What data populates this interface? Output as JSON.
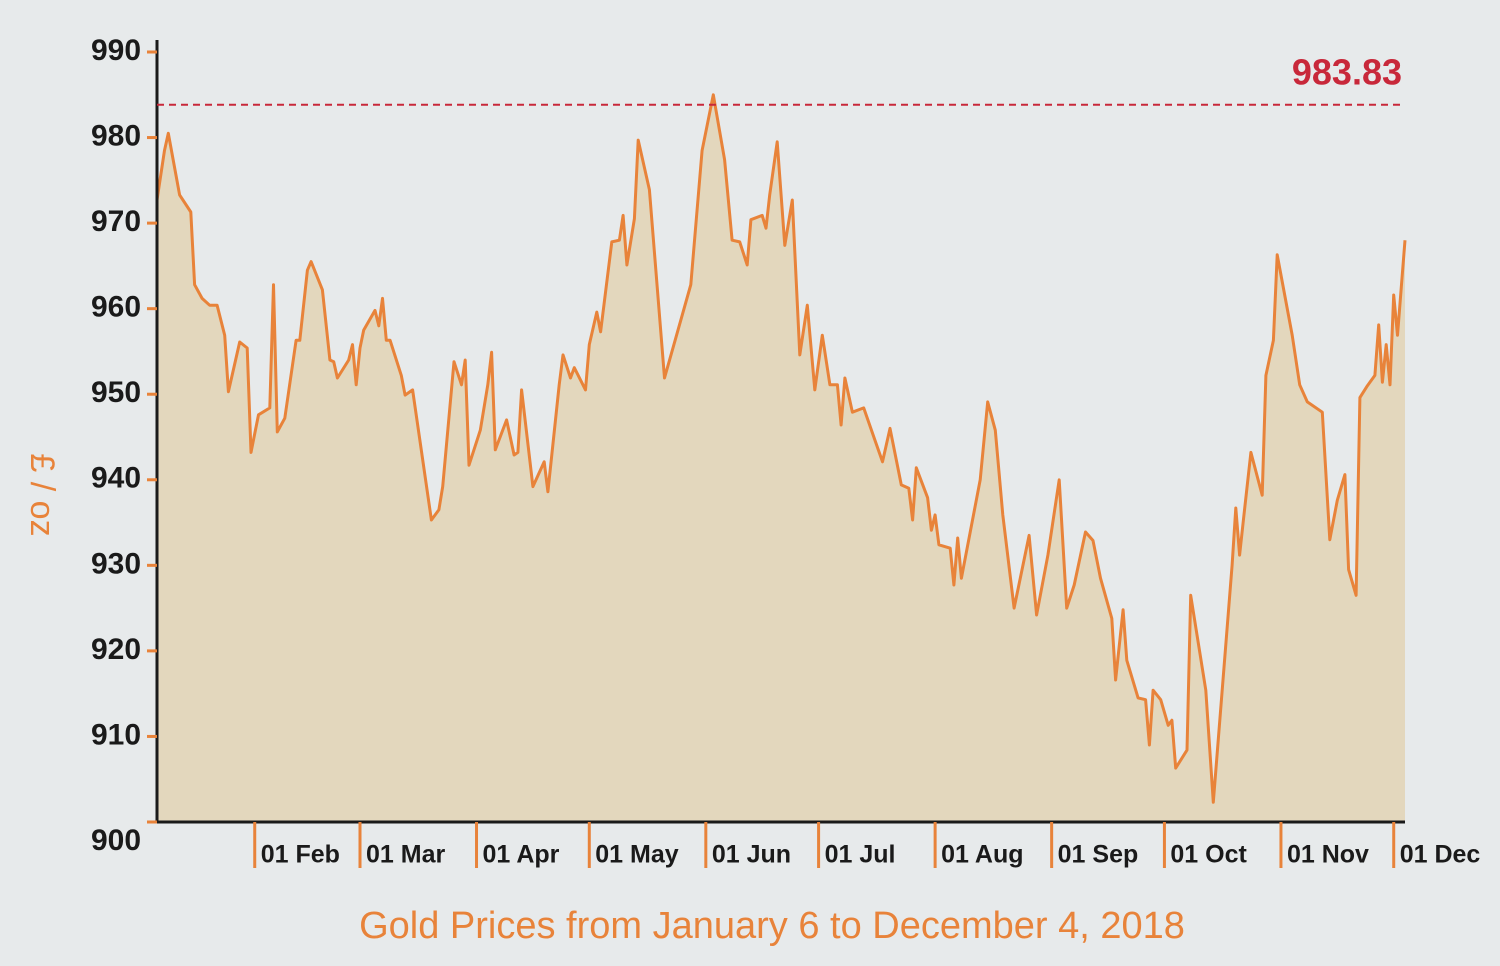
{
  "chart_data": {
    "type": "area",
    "title": "Gold Prices from January 6 to December 4, 2018",
    "y_label": "£ / oz",
    "reference_line": {
      "value": 983.83,
      "color": "#c8283a"
    },
    "xlim": [
      "2018-01-06",
      "2018-12-04"
    ],
    "xticks": [
      {
        "value": "2018-02-01",
        "label": "01 Feb"
      },
      {
        "value": "2018-03-01",
        "label": "01 Mar"
      },
      {
        "value": "2018-04-01",
        "label": "01 Apr"
      },
      {
        "value": "2018-05-01",
        "label": "01 May"
      },
      {
        "value": "2018-06-01",
        "label": "01 Jun"
      },
      {
        "value": "2018-07-01",
        "label": "01 Jul"
      },
      {
        "value": "2018-08-01",
        "label": "01 Aug"
      },
      {
        "value": "2018-09-01",
        "label": "01 Sep"
      },
      {
        "value": "2018-10-01",
        "label": "01 Oct"
      },
      {
        "value": "2018-11-01",
        "label": "01 Nov"
      },
      {
        "value": "2018-12-01",
        "label": "01 Dec"
      }
    ],
    "ylim": [
      900,
      990
    ],
    "yticks": [
      900,
      910,
      920,
      930,
      940,
      950,
      960,
      970,
      980,
      990
    ],
    "line_color": "#e8833a",
    "fill_color": "#e3d7bd",
    "x": [
      "2018-01-06",
      "2018-01-08",
      "2018-01-09",
      "2018-01-12",
      "2018-01-15",
      "2018-01-16",
      "2018-01-18",
      "2018-01-20",
      "2018-01-22",
      "2018-01-24",
      "2018-01-25",
      "2018-01-28",
      "2018-01-30",
      "2018-01-31",
      "2018-02-02",
      "2018-02-05",
      "2018-02-06",
      "2018-02-07",
      "2018-02-09",
      "2018-02-12",
      "2018-02-13",
      "2018-02-15",
      "2018-02-16",
      "2018-02-19",
      "2018-02-21",
      "2018-02-22",
      "2018-02-23",
      "2018-02-26",
      "2018-02-27",
      "2018-02-28",
      "2018-03-01",
      "2018-03-02",
      "2018-03-05",
      "2018-03-06",
      "2018-03-07",
      "2018-03-08",
      "2018-03-09",
      "2018-03-12",
      "2018-03-13",
      "2018-03-15",
      "2018-03-20",
      "2018-03-22",
      "2018-03-23",
      "2018-03-26",
      "2018-03-28",
      "2018-03-29",
      "2018-03-30",
      "2018-04-02",
      "2018-04-04",
      "2018-04-05",
      "2018-04-06",
      "2018-04-09",
      "2018-04-11",
      "2018-04-12",
      "2018-04-13",
      "2018-04-16",
      "2018-04-19",
      "2018-04-20",
      "2018-04-23",
      "2018-04-24",
      "2018-04-26",
      "2018-04-27",
      "2018-04-30",
      "2018-05-01",
      "2018-05-03",
      "2018-05-04",
      "2018-05-07",
      "2018-05-09",
      "2018-05-10",
      "2018-05-11",
      "2018-05-13",
      "2018-05-14",
      "2018-05-17",
      "2018-05-21",
      "2018-05-28",
      "2018-05-31",
      "2018-06-03",
      "2018-06-06",
      "2018-06-08",
      "2018-06-10",
      "2018-06-12",
      "2018-06-13",
      "2018-06-16",
      "2018-06-17",
      "2018-06-18",
      "2018-06-20",
      "2018-06-22",
      "2018-06-24",
      "2018-06-26",
      "2018-06-28",
      "2018-06-30",
      "2018-07-02",
      "2018-07-04",
      "2018-07-06",
      "2018-07-07",
      "2018-07-08",
      "2018-07-10",
      "2018-07-13",
      "2018-07-16",
      "2018-07-18",
      "2018-07-20",
      "2018-07-23",
      "2018-07-25",
      "2018-07-26",
      "2018-07-27",
      "2018-07-30",
      "2018-07-31",
      "2018-08-01",
      "2018-08-02",
      "2018-08-05",
      "2018-08-06",
      "2018-08-07",
      "2018-08-08",
      "2018-08-13",
      "2018-08-15",
      "2018-08-17",
      "2018-08-19",
      "2018-08-22",
      "2018-08-26",
      "2018-08-28",
      "2018-08-31",
      "2018-09-03",
      "2018-09-05",
      "2018-09-07",
      "2018-09-10",
      "2018-09-12",
      "2018-09-14",
      "2018-09-17",
      "2018-09-18",
      "2018-09-20",
      "2018-09-21",
      "2018-09-24",
      "2018-09-26",
      "2018-09-27",
      "2018-09-28",
      "2018-09-30",
      "2018-10-02",
      "2018-10-03",
      "2018-10-04",
      "2018-10-07",
      "2018-10-08",
      "2018-10-12",
      "2018-10-14",
      "2018-10-19",
      "2018-10-20",
      "2018-10-21",
      "2018-10-22",
      "2018-10-24",
      "2018-10-27",
      "2018-10-28",
      "2018-10-30",
      "2018-10-31",
      "2018-11-04",
      "2018-11-06",
      "2018-11-08",
      "2018-11-12",
      "2018-11-14",
      "2018-11-16",
      "2018-11-18",
      "2018-11-19",
      "2018-11-21",
      "2018-11-22",
      "2018-11-24",
      "2018-11-26",
      "2018-11-27",
      "2018-11-28",
      "2018-11-29",
      "2018-11-30",
      "2018-12-01",
      "2018-12-02",
      "2018-12-04"
    ],
    "series": [
      {
        "name": "Gold price",
        "values": [
          972.7,
          978.5,
          980.5,
          973.3,
          971.3,
          962.8,
          961.2,
          960.4,
          960.4,
          956.9,
          950.3,
          956.1,
          955.4,
          943.2,
          947.6,
          948.4,
          962.8,
          945.6,
          947.2,
          956.3,
          956.3,
          964.5,
          965.5,
          962.2,
          954.0,
          953.8,
          951.9,
          954.0,
          955.8,
          951.1,
          955.4,
          957.5,
          959.8,
          958.0,
          961.2,
          956.3,
          956.3,
          952.2,
          949.9,
          950.5,
          935.3,
          936.5,
          939.2,
          953.8,
          951.1,
          954.0,
          941.7,
          945.8,
          951.1,
          954.9,
          943.5,
          947.0,
          942.9,
          943.2,
          950.5,
          939.2,
          942.1,
          938.6,
          951.1,
          954.6,
          951.9,
          953.1,
          950.5,
          955.8,
          959.6,
          957.3,
          967.8,
          968.0,
          970.9,
          965.1,
          970.5,
          979.7,
          973.9,
          951.9,
          962.8,
          978.5,
          985.0,
          977.4,
          968.0,
          967.8,
          965.1,
          970.4,
          970.9,
          969.4,
          973.3,
          979.5,
          967.4,
          972.7,
          954.6,
          960.4,
          950.5,
          956.9,
          951.1,
          951.1,
          946.4,
          951.9,
          947.9,
          948.4,
          944.6,
          942.1,
          946.0,
          939.4,
          939.0,
          935.3,
          941.4,
          937.9,
          934.1,
          935.9,
          932.4,
          932.0,
          927.7,
          933.2,
          928.5,
          940.0,
          949.1,
          945.8,
          935.9,
          925.0,
          933.5,
          924.2,
          931.2,
          940.0,
          925.0,
          927.7,
          933.9,
          932.9,
          928.5,
          923.8,
          916.6,
          924.8,
          918.9,
          914.5,
          914.3,
          909.0,
          915.4,
          914.3,
          911.3,
          911.9,
          906.3,
          908.4,
          926.5,
          915.4,
          902.3,
          930.0,
          936.7,
          931.2,
          935.3,
          943.2,
          938.2,
          952.2,
          956.3,
          966.3,
          956.9,
          951.1,
          949.1,
          947.9,
          933.0,
          937.6,
          940.6,
          929.5,
          926.5,
          949.6,
          951.0,
          952.2,
          958.1,
          951.4,
          955.8,
          951.1,
          961.6,
          956.9,
          968.0
        ]
      }
    ]
  }
}
